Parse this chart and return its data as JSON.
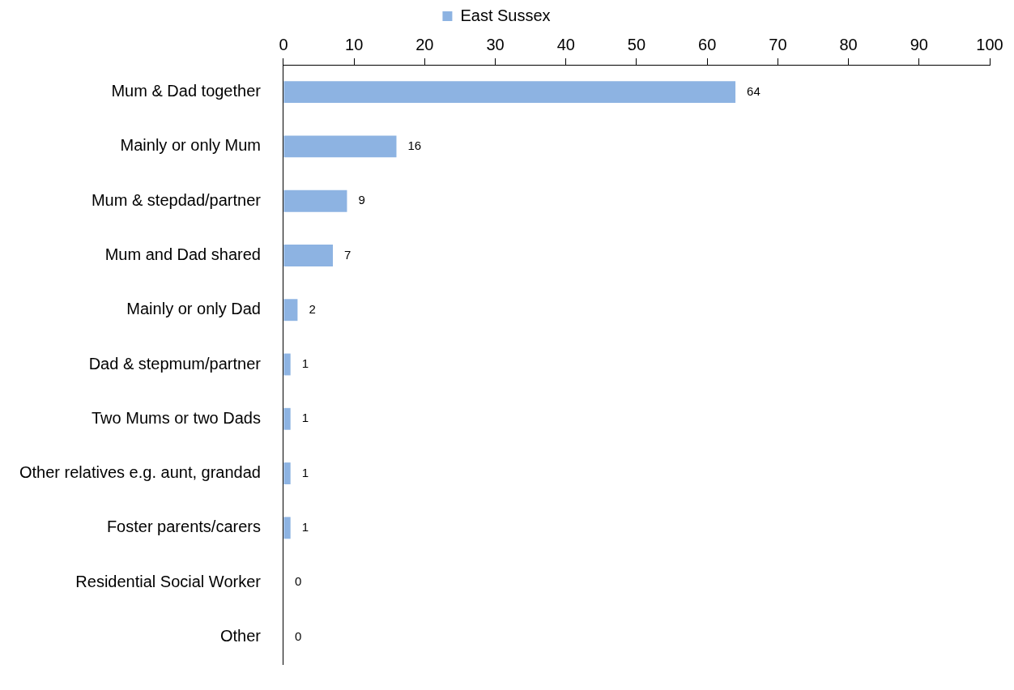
{
  "chart_data": {
    "type": "bar",
    "orientation": "horizontal",
    "categories": [
      "Mum & Dad together",
      "Mainly or only Mum",
      "Mum & stepdad/partner",
      "Mum and Dad shared",
      "Mainly or only Dad",
      "Dad & stepmum/partner",
      "Two Mums or two Dads",
      "Other relatives e.g. aunt, grandad",
      "Foster parents/carers",
      "Residential Social Worker",
      "Other"
    ],
    "series": [
      {
        "name": "East Sussex",
        "color": "#8db3e2",
        "values": [
          64,
          16,
          9,
          7,
          2,
          1,
          1,
          1,
          1,
          0,
          0
        ]
      }
    ],
    "xlim": [
      0,
      100
    ],
    "xticks": [
      0,
      10,
      20,
      30,
      40,
      50,
      60,
      70,
      80,
      90,
      100
    ],
    "grid": false,
    "legend": "top",
    "data_labels": true
  }
}
